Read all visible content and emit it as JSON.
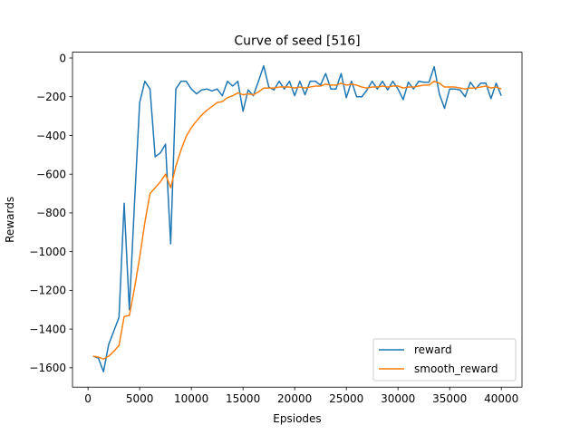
{
  "chart_data": {
    "type": "line",
    "title": "Curve of seed [516]",
    "xlabel": "Epsiodes",
    "ylabel": "Rewards",
    "xlim": [
      -1500,
      42000
    ],
    "ylim": [
      -1700,
      30
    ],
    "xticks": [
      0,
      5000,
      10000,
      15000,
      20000,
      25000,
      30000,
      35000,
      40000
    ],
    "yticks": [
      -1600,
      -1400,
      -1200,
      -1000,
      -800,
      -600,
      -400,
      -200,
      0
    ],
    "legend_position": "lower right",
    "series": [
      {
        "name": "reward",
        "color": "#1f77b4",
        "x": [
          500,
          1000,
          1500,
          2000,
          2500,
          3000,
          3500,
          4000,
          4500,
          5000,
          5500,
          6000,
          6500,
          7000,
          7500,
          8000,
          8500,
          9000,
          9500,
          10000,
          10500,
          11000,
          11500,
          12000,
          12500,
          13000,
          13500,
          14000,
          14500,
          15000,
          15500,
          16000,
          16500,
          17000,
          17500,
          18000,
          18500,
          19000,
          19500,
          20000,
          20500,
          21000,
          21500,
          22000,
          22500,
          23000,
          23500,
          24000,
          24500,
          25000,
          25500,
          26000,
          26500,
          27000,
          27500,
          28000,
          28500,
          29000,
          29500,
          30000,
          30500,
          31000,
          31500,
          32000,
          32500,
          33000,
          33500,
          34000,
          34500,
          35000,
          35500,
          36000,
          36500,
          37000,
          37500,
          38000,
          38500,
          39000,
          39500,
          40000
        ],
        "values": [
          -1540,
          -1550,
          -1620,
          -1480,
          -1410,
          -1340,
          -750,
          -1300,
          -750,
          -230,
          -120,
          -160,
          -510,
          -490,
          -445,
          -960,
          -160,
          -120,
          -120,
          -160,
          -185,
          -165,
          -160,
          -170,
          -160,
          -195,
          -120,
          -145,
          -120,
          -275,
          -165,
          -195,
          -120,
          -40,
          -150,
          -165,
          -120,
          -160,
          -120,
          -195,
          -120,
          -190,
          -120,
          -120,
          -140,
          -80,
          -160,
          -160,
          -80,
          -205,
          -120,
          -200,
          -200,
          -165,
          -120,
          -160,
          -120,
          -165,
          -120,
          -160,
          -215,
          -125,
          -160,
          -120,
          -125,
          -125,
          -45,
          -185,
          -260,
          -160,
          -160,
          -165,
          -200,
          -125,
          -160,
          -130,
          -130,
          -210,
          -130,
          -195
        ]
      },
      {
        "name": "smooth_reward",
        "color": "#ff7f0e",
        "x": [
          500,
          1000,
          1500,
          2000,
          2500,
          3000,
          3500,
          4000,
          4500,
          5000,
          5500,
          6000,
          6500,
          7000,
          7500,
          8000,
          8500,
          9000,
          9500,
          10000,
          10500,
          11000,
          11500,
          12000,
          12500,
          13000,
          13500,
          14000,
          14500,
          15000,
          15500,
          16000,
          16500,
          17000,
          17500,
          18000,
          18500,
          19000,
          19500,
          20000,
          20500,
          21000,
          21500,
          22000,
          22500,
          23000,
          23500,
          24000,
          24500,
          25000,
          25500,
          26000,
          26500,
          27000,
          27500,
          28000,
          28500,
          29000,
          29500,
          30000,
          30500,
          31000,
          31500,
          32000,
          32500,
          33000,
          33500,
          34000,
          34500,
          35000,
          35500,
          36000,
          36500,
          37000,
          37500,
          38000,
          38500,
          39000,
          39500,
          40000
        ],
        "values": [
          -1540,
          -1545,
          -1555,
          -1540,
          -1515,
          -1485,
          -1335,
          -1330,
          -1190,
          -1030,
          -850,
          -700,
          -670,
          -640,
          -600,
          -670,
          -560,
          -475,
          -405,
          -360,
          -325,
          -295,
          -270,
          -250,
          -230,
          -225,
          -205,
          -195,
          -180,
          -190,
          -185,
          -190,
          -175,
          -155,
          -155,
          -155,
          -150,
          -150,
          -150,
          -155,
          -150,
          -155,
          -150,
          -145,
          -145,
          -135,
          -140,
          -140,
          -130,
          -140,
          -135,
          -140,
          -150,
          -155,
          -150,
          -150,
          -145,
          -150,
          -145,
          -145,
          -155,
          -150,
          -150,
          -145,
          -140,
          -140,
          -120,
          -130,
          -150,
          -150,
          -150,
          -155,
          -160,
          -155,
          -155,
          -150,
          -145,
          -155,
          -150,
          -160
        ]
      }
    ]
  }
}
